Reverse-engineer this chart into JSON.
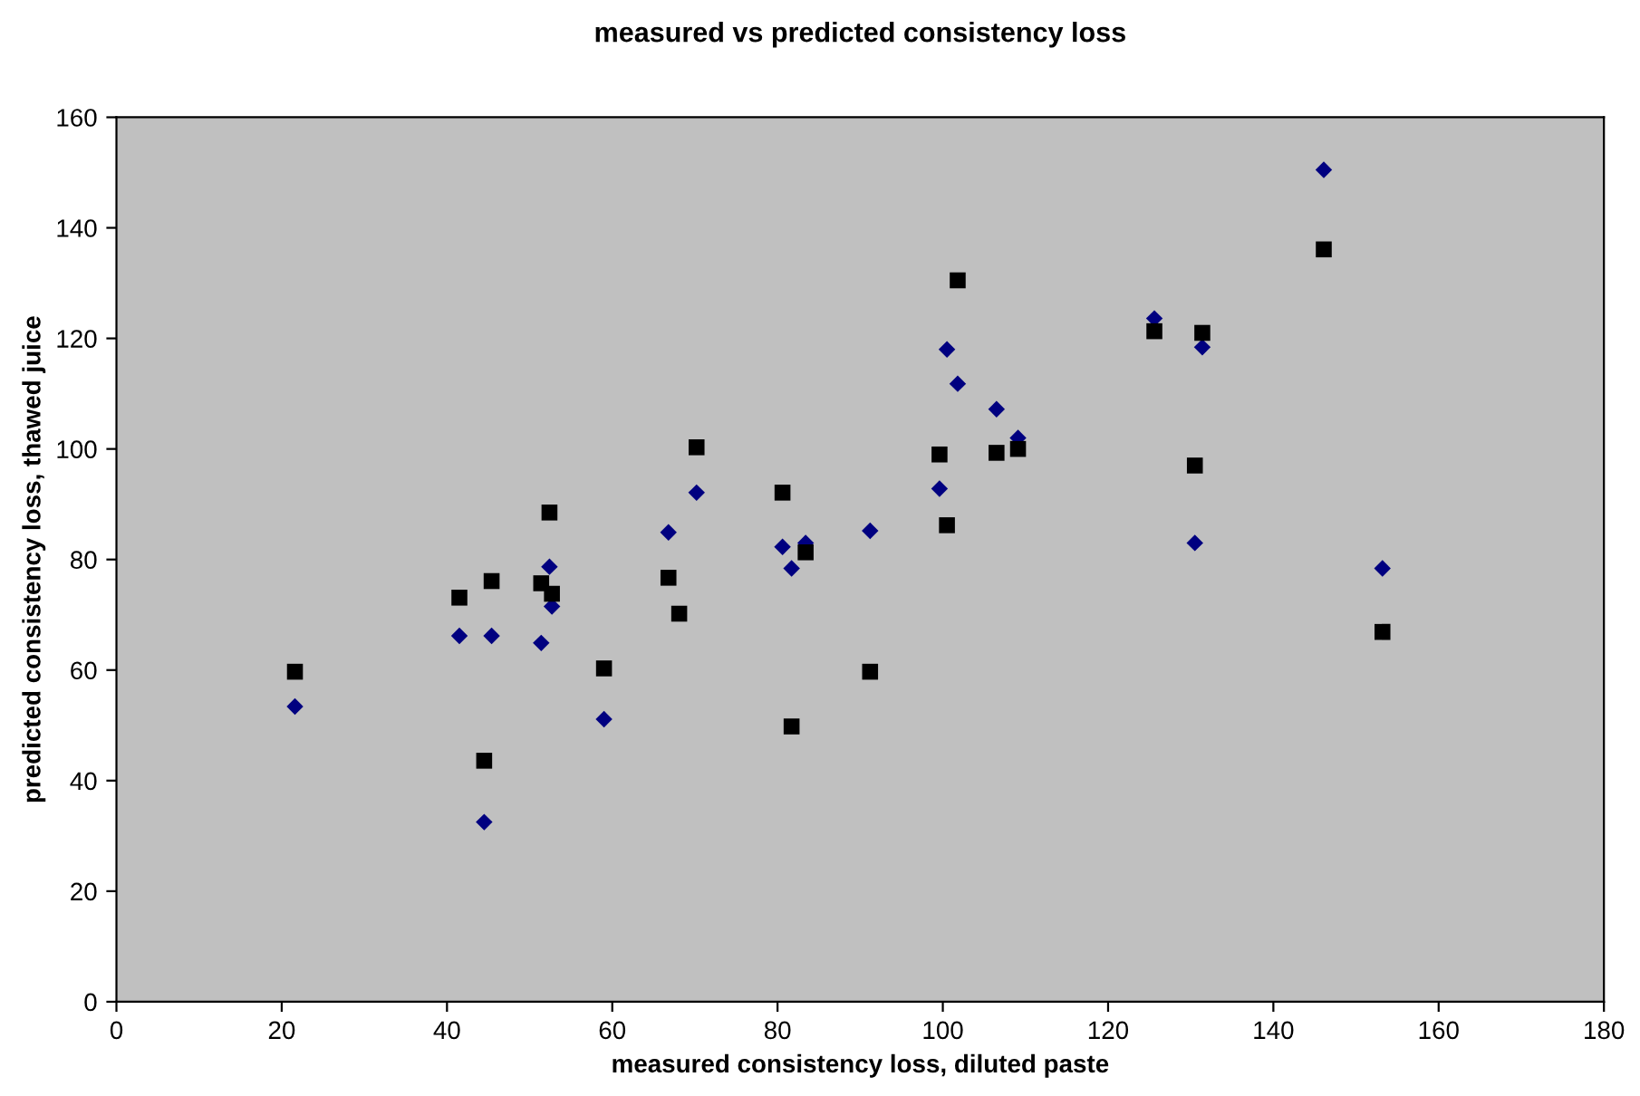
{
  "chart_data": {
    "type": "scatter",
    "title": "measured vs predicted consistency loss",
    "xlabel": "measured consistency loss, diluted paste",
    "ylabel": "predicted consistency loss, thawed juice",
    "x": [
      21.6,
      41.5,
      44.5,
      45.4,
      51.4,
      52.4,
      52.7,
      59.0,
      66.8,
      68.1,
      70.2,
      80.6,
      81.7,
      83.4,
      91.2,
      99.6,
      100.5,
      101.8,
      106.5,
      109.1,
      125.6,
      130.5,
      131.4,
      146.1,
      153.2
    ],
    "series": [
      {
        "color": "#000080",
        "marker": "diamond",
        "values": [
          53.4,
          66.2,
          32.5,
          66.2,
          64.9,
          78.7,
          71.5,
          51.1,
          84.9,
          null,
          92.1,
          82.3,
          78.4,
          83,
          85.2,
          92.8,
          118.0,
          111.8,
          107.2,
          102.0,
          123.6,
          83.0,
          118.4,
          150.5,
          78.4
        ]
      },
      {
        "color": "#000000",
        "marker": "square",
        "values": [
          59.7,
          73.1,
          43.6,
          76.1,
          75.7,
          88.5,
          73.8,
          60.3,
          76.7,
          70.2,
          100.3,
          92.1,
          49.8,
          81.3,
          59.7,
          99.0,
          86.2,
          130.5,
          99.3,
          100.0,
          121.3,
          97.0,
          121.0,
          136.1,
          66.9
        ]
      }
    ],
    "xlim": [
      0,
      180
    ],
    "xticks": [
      0,
      20,
      40,
      60,
      80,
      100,
      120,
      140,
      160,
      180
    ],
    "ylim": [
      0,
      160
    ],
    "yticks": [
      0,
      20,
      40,
      60,
      80,
      100,
      120,
      140,
      160
    ],
    "grid": false,
    "legend": false
  }
}
